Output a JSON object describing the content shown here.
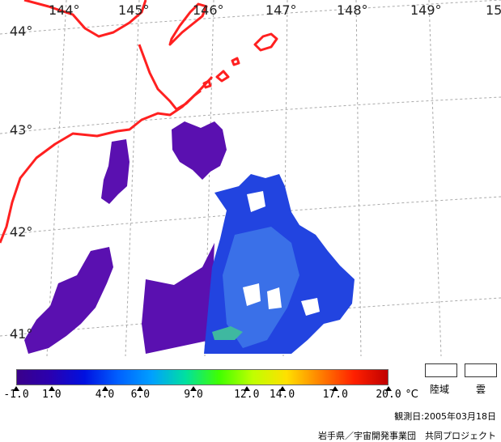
{
  "map": {
    "longitude_labels": [
      "144°",
      "145°",
      "146°",
      "147°",
      "148°",
      "149°",
      "15"
    ],
    "latitude_labels": [
      "44°",
      "43°",
      "42°",
      "41°"
    ],
    "colors": {
      "coastline": "#ff2020",
      "graticule": "#aaaaaa",
      "cold_water": "#5a10b0",
      "cool_water": "#2244e0",
      "mid_water": "#3a70e8",
      "warm_trace": "#3fb8a0"
    }
  },
  "colorbar": {
    "tick_labels": [
      "-1.0",
      "1.0",
      "4.0",
      "6.0",
      "9.0",
      "12.0",
      "14.0",
      "17.0",
      "20.0"
    ],
    "tick_values": [
      -1,
      1,
      4,
      6,
      9,
      12,
      14,
      17,
      20
    ],
    "min": -1,
    "max": 20,
    "unit": "°C",
    "gradient": [
      "#3a008a",
      "#2a00b0",
      "#0010e0",
      "#0060ff",
      "#00a0ff",
      "#00e0a0",
      "#40ff00",
      "#c0ff00",
      "#ffe000",
      "#ff8000",
      "#ff2000",
      "#c00000"
    ]
  },
  "legend": {
    "land": "陸域",
    "cloud": "雲"
  },
  "credits": {
    "date": "観測日:2005年03月18日",
    "org": "岩手県／宇宙開発事業団　共同プロジェクト"
  }
}
